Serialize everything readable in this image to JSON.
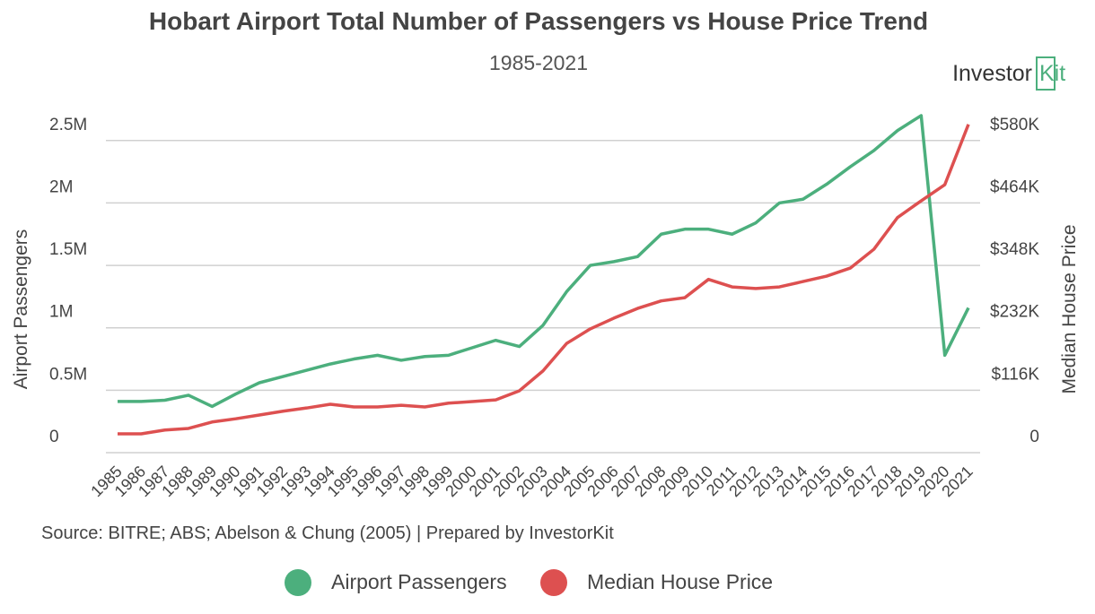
{
  "chart_data": {
    "type": "line",
    "title": "Hobart Airport Total Number of Passengers vs House Price Trend",
    "subtitle": "1985-2021",
    "logo": {
      "text": "Investor",
      "accent": "Kit"
    },
    "source": "Source: BITRE; ABS; Abelson & Chung (2005) | Prepared by InvestorKit",
    "y_label": "Airport Passengers",
    "y2_label": "Median House Price",
    "categories": [
      "1985",
      "1986",
      "1987",
      "1988",
      "1989",
      "1990",
      "1991",
      "1992",
      "1993",
      "1994",
      "1995",
      "1996",
      "1997",
      "1998",
      "1999",
      "2000",
      "2001",
      "2002",
      "2003",
      "2004",
      "2005",
      "2006",
      "2007",
      "2008",
      "2009",
      "2010",
      "2011",
      "2012",
      "2013",
      "2014",
      "2015",
      "2016",
      "2017",
      "2018",
      "2019",
      "2020",
      "2021"
    ],
    "series": [
      {
        "name": "Airport Passengers",
        "color": "#4caf7d",
        "axis": "y",
        "values": [
          410000,
          410000,
          420000,
          460000,
          370000,
          470000,
          560000,
          610000,
          660000,
          710000,
          750000,
          780000,
          740000,
          770000,
          780000,
          840000,
          900000,
          850000,
          1020000,
          1290000,
          1500000,
          1530000,
          1570000,
          1750000,
          1790000,
          1790000,
          1750000,
          1840000,
          2000000,
          2030000,
          2150000,
          2290000,
          2420000,
          2580000,
          2700000,
          780000,
          1160000
        ]
      },
      {
        "name": "Median House Price",
        "color": "#dd5050",
        "axis": "y2",
        "values": [
          35000,
          35000,
          42000,
          45000,
          57000,
          63000,
          70000,
          77000,
          83000,
          90000,
          85000,
          85000,
          88000,
          85000,
          92000,
          95000,
          98000,
          115000,
          152000,
          203000,
          230000,
          250000,
          268000,
          282000,
          288000,
          322000,
          308000,
          305000,
          308000,
          318000,
          328000,
          343000,
          378000,
          437000,
          468000,
          498000,
          610000
        ]
      }
    ],
    "ylim": [
      0,
      2800000
    ],
    "yticks": [
      0,
      {
        "value": 500000,
        "label": "0.5M"
      },
      {
        "value": 1000000,
        "label": "1M"
      },
      {
        "value": 1500000,
        "label": "1.5M"
      },
      {
        "value": 2000000,
        "label": "2M"
      },
      {
        "value": 2500000,
        "label": "2.5M"
      }
    ],
    "y2lim": [
      0,
      649600
    ],
    "y2ticks": [
      0,
      {
        "value": 116000,
        "label": "$116K"
      },
      {
        "value": 232000,
        "label": "$232K"
      },
      {
        "value": 348000,
        "label": "$348K"
      },
      {
        "value": 464000,
        "label": "$464K"
      },
      {
        "value": 580000,
        "label": "$580K"
      }
    ],
    "grid": true,
    "legend": "bottom"
  }
}
